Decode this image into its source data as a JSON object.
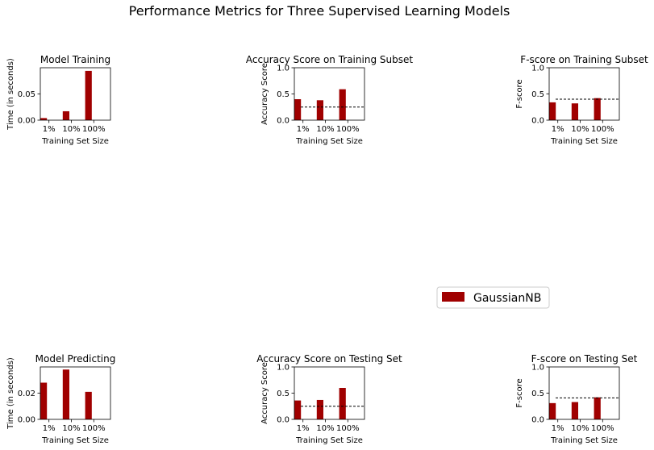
{
  "figure": {
    "suptitle": "Performance Metrics for Three Supervised Learning Models",
    "legend": {
      "placement": "center-right",
      "entries": [
        {
          "label": "GaussianNB",
          "color": "#A00000"
        }
      ]
    }
  },
  "chart_data": [
    {
      "type": "bar",
      "title": "Model Training",
      "xlabel": "Training Set Size",
      "ylabel": "Time (in seconds)",
      "categories": [
        "1%",
        "10%",
        "100%"
      ],
      "ylim": [
        0,
        0.1
      ],
      "yticks": [
        0.0,
        0.05
      ],
      "ytick_labels": [
        "0.00",
        "0.05"
      ],
      "series": [
        {
          "name": "GaussianNB",
          "color": "#A00000",
          "values": [
            0.004,
            0.017,
            0.094
          ]
        }
      ]
    },
    {
      "type": "bar",
      "title": "Accuracy Score on Training Subset",
      "xlabel": "Training Set Size",
      "ylabel": "Accuracy Score",
      "categories": [
        "1%",
        "10%",
        "100%"
      ],
      "ylim": [
        0,
        1.0
      ],
      "yticks": [
        0.0,
        0.5,
        1.0
      ],
      "ytick_labels": [
        "0.0",
        "0.5",
        "1.0"
      ],
      "baseline": 0.25,
      "series": [
        {
          "name": "GaussianNB",
          "color": "#A00000",
          "values": [
            0.4,
            0.38,
            0.59
          ]
        }
      ]
    },
    {
      "type": "bar",
      "title": "F-score on Training Subset",
      "xlabel": "Training Set Size",
      "ylabel": "F-score",
      "categories": [
        "1%",
        "10%",
        "100%"
      ],
      "ylim": [
        0,
        1.0
      ],
      "yticks": [
        0.0,
        0.5,
        1.0
      ],
      "ytick_labels": [
        "0.0",
        "0.5",
        "1.0"
      ],
      "baseline": 0.4,
      "series": [
        {
          "name": "GaussianNB",
          "color": "#A00000",
          "values": [
            0.34,
            0.32,
            0.42
          ]
        }
      ]
    },
    {
      "type": "bar",
      "title": "Model Predicting",
      "xlabel": "Training Set Size",
      "ylabel": "Time (in seconds)",
      "categories": [
        "1%",
        "10%",
        "100%"
      ],
      "ylim": [
        0,
        0.04
      ],
      "yticks": [
        0.0,
        0.02
      ],
      "ytick_labels": [
        "0.00",
        "0.02"
      ],
      "series": [
        {
          "name": "GaussianNB",
          "color": "#A00000",
          "values": [
            0.028,
            0.038,
            0.021
          ]
        }
      ]
    },
    {
      "type": "bar",
      "title": "Accuracy Score on Testing Set",
      "xlabel": "Training Set Size",
      "ylabel": "Accuracy Score",
      "categories": [
        "1%",
        "10%",
        "100%"
      ],
      "ylim": [
        0,
        1.0
      ],
      "yticks": [
        0.0,
        0.5,
        1.0
      ],
      "ytick_labels": [
        "0.0",
        "0.5",
        "1.0"
      ],
      "baseline": 0.25,
      "series": [
        {
          "name": "GaussianNB",
          "color": "#A00000",
          "values": [
            0.36,
            0.37,
            0.6
          ]
        }
      ]
    },
    {
      "type": "bar",
      "title": "F-score on Testing Set",
      "xlabel": "Training Set Size",
      "ylabel": "F-score",
      "categories": [
        "1%",
        "10%",
        "100%"
      ],
      "ylim": [
        0,
        1.0
      ],
      "yticks": [
        0.0,
        0.5,
        1.0
      ],
      "ytick_labels": [
        "0.0",
        "0.5",
        "1.0"
      ],
      "baseline": 0.41,
      "series": [
        {
          "name": "GaussianNB",
          "color": "#A00000",
          "values": [
            0.31,
            0.33,
            0.42
          ]
        }
      ]
    }
  ]
}
